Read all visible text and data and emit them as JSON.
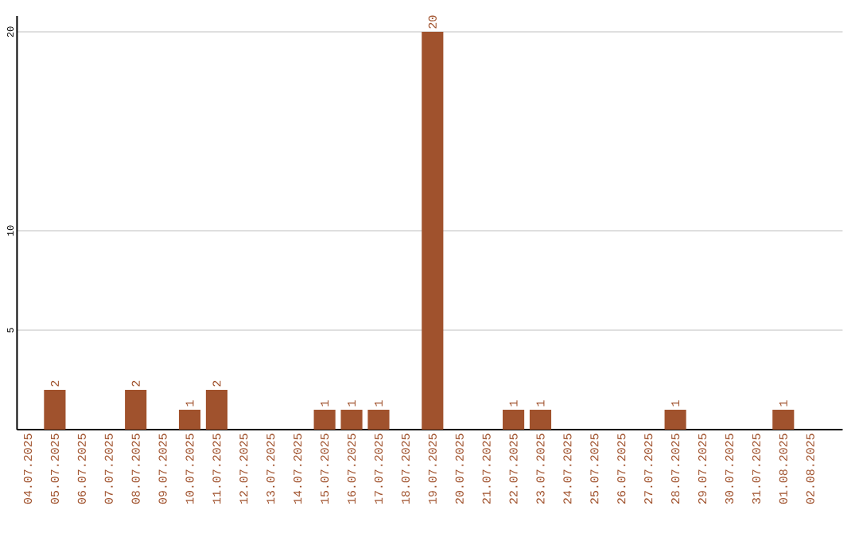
{
  "chart_data": {
    "type": "bar",
    "color": "#a0522d",
    "categories": [
      "04.07.2025",
      "05.07.2025",
      "06.07.2025",
      "07.07.2025",
      "08.07.2025",
      "09.07.2025",
      "10.07.2025",
      "11.07.2025",
      "12.07.2025",
      "13.07.2025",
      "14.07.2025",
      "15.07.2025",
      "16.07.2025",
      "17.07.2025",
      "18.07.2025",
      "19.07.2025",
      "20.07.2025",
      "21.07.2025",
      "22.07.2025",
      "23.07.2025",
      "24.07.2025",
      "25.07.2025",
      "26.07.2025",
      "27.07.2025",
      "28.07.2025",
      "29.07.2025",
      "30.07.2025",
      "31.07.2025",
      "01.08.2025",
      "02.08.2025"
    ],
    "values": [
      0,
      2,
      0,
      0,
      2,
      0,
      1,
      2,
      0,
      0,
      0,
      1,
      1,
      1,
      0,
      20,
      0,
      0,
      1,
      1,
      0,
      0,
      0,
      0,
      1,
      0,
      0,
      0,
      1,
      0
    ],
    "value_labels": [
      null,
      "2",
      null,
      null,
      "2",
      null,
      "1",
      "2",
      null,
      null,
      null,
      "1",
      "1",
      "1",
      null,
      "20",
      null,
      null,
      "1",
      "1",
      null,
      null,
      null,
      null,
      "1",
      null,
      null,
      null,
      "1",
      null
    ],
    "ylim": [
      0,
      20.8
    ],
    "yticks": [
      5,
      10,
      20
    ],
    "grid": "y"
  }
}
